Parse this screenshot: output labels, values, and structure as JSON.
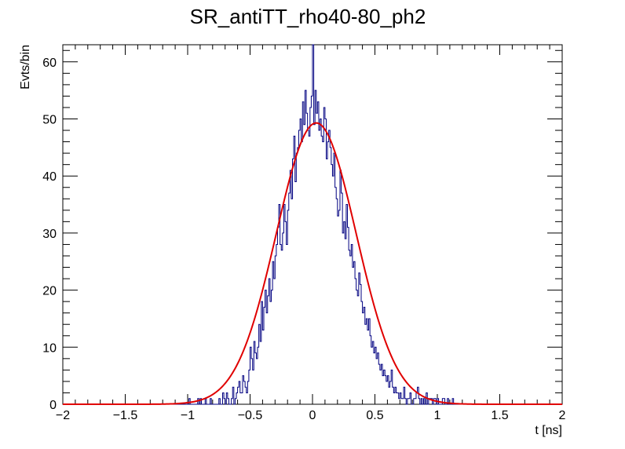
{
  "chart_data": {
    "type": "histogram",
    "title": "SR_antiTT_rho40-80_ph2",
    "xlabel": "t [ns]",
    "ylabel": "Evts/bin",
    "xlim": [
      -2,
      2
    ],
    "ylim": [
      0,
      63
    ],
    "x_ticks": [
      -2,
      -1.5,
      -1,
      -0.5,
      0,
      0.5,
      1,
      1.5,
      2
    ],
    "x_tick_labels": [
      "−2",
      "−1.5",
      "−1",
      "−0.5",
      "0",
      "0.5",
      "1",
      "1.5",
      "2"
    ],
    "y_ticks": [
      0,
      10,
      20,
      30,
      40,
      50,
      60
    ],
    "y_tick_labels": [
      "0",
      "10",
      "20",
      "30",
      "40",
      "50",
      "60"
    ],
    "grid": false,
    "legend": "none",
    "series": [
      {
        "style": "step",
        "color": "#000080",
        "bin_width": 0.01,
        "x_start": -1.0,
        "values": [
          0,
          1,
          0,
          0,
          0,
          0,
          0,
          0,
          1,
          0,
          1,
          0,
          0,
          0,
          1,
          0,
          0,
          0,
          1,
          0,
          0,
          0,
          0,
          0,
          0,
          1,
          0,
          0,
          2,
          1,
          0,
          2,
          1,
          0,
          0,
          1,
          3,
          0,
          1,
          2,
          3,
          4,
          2,
          2,
          5,
          4,
          3,
          2,
          4,
          6,
          10,
          8,
          6,
          11,
          9,
          8,
          10,
          14,
          11,
          18,
          13,
          17,
          20,
          16,
          19,
          22,
          18,
          20,
          25,
          22,
          26,
          28,
          31,
          35,
          28,
          27,
          30,
          35,
          32,
          28,
          34,
          37,
          41,
          36,
          43,
          47,
          39,
          44,
          45,
          48,
          50,
          46,
          53,
          49,
          55,
          51,
          48,
          47,
          52,
          54,
          63,
          49,
          55,
          51,
          53,
          48,
          50,
          47,
          46,
          52,
          50,
          43,
          46,
          48,
          45,
          42,
          40,
          44,
          38,
          36,
          33,
          34,
          41,
          37,
          30,
          32,
          29,
          35,
          31,
          27,
          26,
          28,
          24,
          25,
          22,
          20,
          19,
          23,
          21,
          18,
          16,
          17,
          14,
          15,
          13,
          15,
          12,
          10,
          11,
          9,
          10,
          8,
          9,
          7,
          6,
          7,
          5,
          6,
          5,
          4,
          5,
          3,
          4,
          6,
          3,
          2,
          3,
          2,
          2,
          1,
          2,
          1,
          1,
          3,
          1,
          0,
          1,
          1,
          2,
          0,
          0,
          1,
          1,
          2,
          3,
          1,
          0,
          1,
          0,
          1,
          0,
          2,
          0,
          1,
          1,
          1,
          0,
          1,
          1,
          0,
          1,
          0,
          0,
          0,
          1,
          1,
          0,
          0,
          1,
          0,
          0,
          0,
          1,
          0,
          0,
          0,
          0
        ]
      },
      {
        "style": "fit-curve",
        "function": "gaussian",
        "color": "#e00000",
        "amplitude": 49.3,
        "mean": 0.03,
        "sigma": 0.32,
        "x_range": [
          -2,
          2
        ]
      }
    ]
  }
}
